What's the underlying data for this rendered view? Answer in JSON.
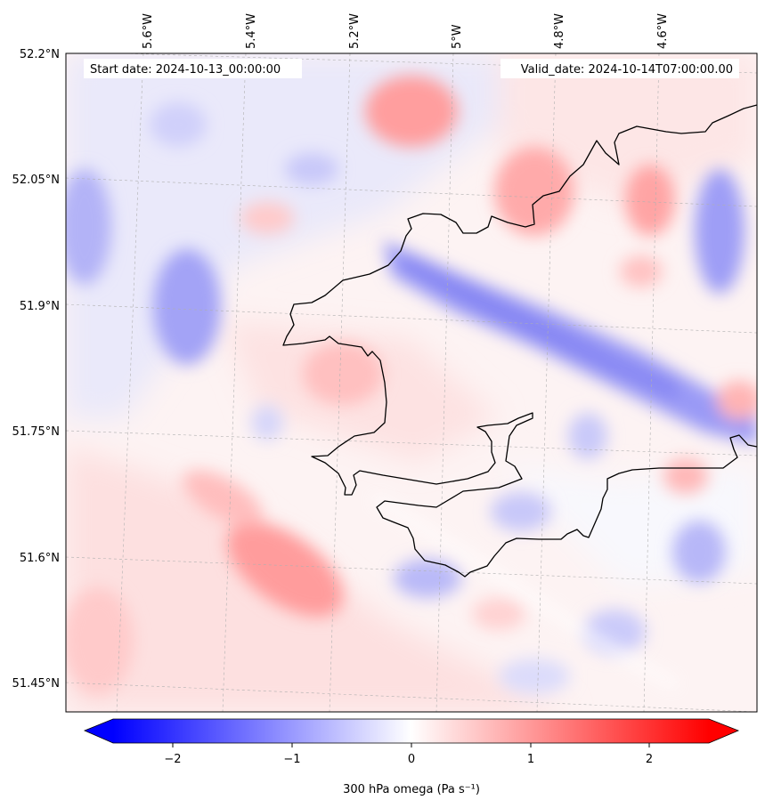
{
  "map": {
    "start_date": "Start date: 2024-10-13_00:00:00",
    "valid_date": "Valid_date: 2024-10-14T07:00:00.00",
    "lon_labels": [
      "5.6°W",
      "5.4°W",
      "5.2°W",
      "5°W",
      "4.8°W",
      "4.6°W"
    ],
    "lat_labels": [
      "52.2°N",
      "52.05°N",
      "51.9°N",
      "51.75°N",
      "51.6°N",
      "51.45°N"
    ],
    "field_variable": "300 hPa omega",
    "field_units": "Pa s⁻¹"
  },
  "colorbar": {
    "label": "300 hPa omega (Pa s⁻¹)",
    "ticks": [
      "−2",
      "−1",
      "0",
      "1",
      "2"
    ],
    "tick_values": [
      -2,
      -1,
      0,
      1,
      2
    ],
    "range": [
      -2.5,
      2.5
    ],
    "extend": "both",
    "colormap": "bwr",
    "low_color": "#0000ff",
    "mid_color": "#ffffff",
    "high_color": "#ff0000"
  },
  "colors": {
    "coastline": "#000000",
    "gridline": "#b0b0b0"
  }
}
